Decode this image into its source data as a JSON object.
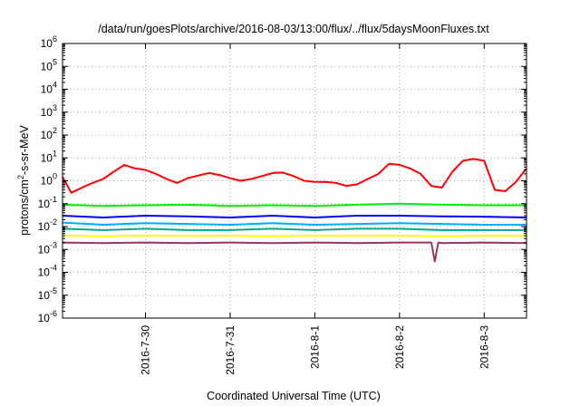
{
  "chart_data": {
    "type": "line",
    "title": "/data/run/goesPlots/archive/2016-08-03/13:00/flux/../flux/5daysMoonFluxes.txt",
    "xlabel": "Coordinated Universal Time (UTC)",
    "ylabel": {
      "prefix": "protons/cm",
      "superscript": "2",
      "suffix": "-s-sr-MeV"
    },
    "yscale": "log",
    "ylim": [
      1e-06,
      1000000.0
    ],
    "y_ticks": [
      {
        "base": "10",
        "exp": "-6",
        "value": 1e-06
      },
      {
        "base": "10",
        "exp": "-5",
        "value": 1e-05
      },
      {
        "base": "10",
        "exp": "-4",
        "value": 0.0001
      },
      {
        "base": "10",
        "exp": "-3",
        "value": 0.001
      },
      {
        "base": "10",
        "exp": "-2",
        "value": 0.01
      },
      {
        "base": "10",
        "exp": "-1",
        "value": 0.1
      },
      {
        "base": "10",
        "exp": "0",
        "value": 1
      },
      {
        "base": "10",
        "exp": "1",
        "value": 10
      },
      {
        "base": "10",
        "exp": "2",
        "value": 100
      },
      {
        "base": "10",
        "exp": "3",
        "value": 1000
      },
      {
        "base": "10",
        "exp": "4",
        "value": 10000
      },
      {
        "base": "10",
        "exp": "5",
        "value": 100000
      },
      {
        "base": "10",
        "exp": "6",
        "value": 1000000
      }
    ],
    "x_range": [
      "2016-07-29T00:30",
      "2016-08-03T12:00"
    ],
    "x_ticks": [
      {
        "label": "2016-7-30",
        "value": "2016-07-30T00:00"
      },
      {
        "label": "2016-7-31",
        "value": "2016-07-31T00:00"
      },
      {
        "label": "2016-8-1",
        "value": "2016-08-01T00:00"
      },
      {
        "label": "2016-8-2",
        "value": "2016-08-02T00:00"
      },
      {
        "label": "2016-8-3",
        "value": "2016-08-03T00:00"
      }
    ],
    "grid": true,
    "series": [
      {
        "color": "#ff0000",
        "x": [
          "2016-07-29T00:30",
          "2016-07-29T03:00",
          "2016-07-29T06:00",
          "2016-07-29T09:00",
          "2016-07-29T12:00",
          "2016-07-29T15:00",
          "2016-07-29T18:00",
          "2016-07-29T21:00",
          "2016-07-30T00:00",
          "2016-07-30T03:00",
          "2016-07-30T06:00",
          "2016-07-30T09:00",
          "2016-07-30T12:00",
          "2016-07-30T15:00",
          "2016-07-30T18:00",
          "2016-07-30T21:00",
          "2016-07-31T00:00",
          "2016-07-31T03:00",
          "2016-07-31T06:00",
          "2016-07-31T09:00",
          "2016-07-31T12:00",
          "2016-07-31T15:00",
          "2016-07-31T18:00",
          "2016-07-31T21:00",
          "2016-08-01T00:00",
          "2016-08-01T03:00",
          "2016-08-01T06:00",
          "2016-08-01T09:00",
          "2016-08-01T12:00",
          "2016-08-01T15:00",
          "2016-08-01T18:00",
          "2016-08-01T21:00",
          "2016-08-02T00:00",
          "2016-08-02T03:00",
          "2016-08-02T06:00",
          "2016-08-02T09:00",
          "2016-08-02T12:00",
          "2016-08-02T15:00",
          "2016-08-02T18:00",
          "2016-08-02T21:00",
          "2016-08-03T00:00",
          "2016-08-03T03:00",
          "2016-08-03T06:00",
          "2016-08-03T09:00",
          "2016-08-03T12:00"
        ],
        "y": [
          1.5,
          0.3,
          0.5,
          0.8,
          1.2,
          2.5,
          5,
          3.5,
          3,
          2,
          1.2,
          0.8,
          1.3,
          1.7,
          2.2,
          1.8,
          1.3,
          1.0,
          1.2,
          1.6,
          2.2,
          2.3,
          1.6,
          1.0,
          0.9,
          0.9,
          0.8,
          0.6,
          0.7,
          1.2,
          2.0,
          5.5,
          5.0,
          3.5,
          2.0,
          0.6,
          0.5,
          2.5,
          7.5,
          9.0,
          7.5,
          0.4,
          0.35,
          0.9,
          3.5
        ]
      },
      {
        "color": "#00ee00",
        "x": [
          "2016-07-29T00:30",
          "2016-07-29T12:00",
          "2016-07-30T00:00",
          "2016-07-30T12:00",
          "2016-07-31T00:00",
          "2016-07-31T12:00",
          "2016-08-01T00:00",
          "2016-08-01T12:00",
          "2016-08-02T00:00",
          "2016-08-02T12:00",
          "2016-08-03T00:00",
          "2016-08-03T12:00"
        ],
        "y": [
          0.09,
          0.08,
          0.085,
          0.09,
          0.08,
          0.085,
          0.08,
          0.09,
          0.1,
          0.09,
          0.085,
          0.085
        ]
      },
      {
        "color": "#0000ff",
        "x": [
          "2016-07-29T00:30",
          "2016-07-29T12:00",
          "2016-07-30T00:00",
          "2016-07-30T12:00",
          "2016-07-31T00:00",
          "2016-07-31T12:00",
          "2016-08-01T00:00",
          "2016-08-01T12:00",
          "2016-08-02T00:00",
          "2016-08-02T12:00",
          "2016-08-03T00:00",
          "2016-08-03T12:00"
        ],
        "y": [
          0.03,
          0.025,
          0.03,
          0.028,
          0.025,
          0.03,
          0.025,
          0.03,
          0.03,
          0.028,
          0.027,
          0.025
        ]
      },
      {
        "color": "#00aaff",
        "x": [
          "2016-07-29T00:30",
          "2016-07-29T12:00",
          "2016-07-30T00:00",
          "2016-07-30T12:00",
          "2016-07-31T00:00",
          "2016-07-31T12:00",
          "2016-08-01T00:00",
          "2016-08-01T12:00",
          "2016-08-02T00:00",
          "2016-08-02T12:00",
          "2016-08-03T00:00",
          "2016-08-03T12:00"
        ],
        "y": [
          0.015,
          0.012,
          0.014,
          0.013,
          0.012,
          0.014,
          0.012,
          0.013,
          0.014,
          0.013,
          0.012,
          0.012
        ]
      },
      {
        "color": "#00aa88",
        "x": [
          "2016-07-29T00:30",
          "2016-07-29T12:00",
          "2016-07-30T00:00",
          "2016-07-30T12:00",
          "2016-07-31T00:00",
          "2016-07-31T12:00",
          "2016-08-01T00:00",
          "2016-08-01T12:00",
          "2016-08-02T00:00",
          "2016-08-02T12:00",
          "2016-08-03T00:00",
          "2016-08-03T12:00"
        ],
        "y": [
          0.008,
          0.007,
          0.008,
          0.007,
          0.007,
          0.008,
          0.007,
          0.008,
          0.008,
          0.007,
          0.007,
          0.007
        ]
      },
      {
        "color": "#ffff00",
        "x": [
          "2016-07-29T00:30",
          "2016-07-29T12:00",
          "2016-07-30T00:00",
          "2016-07-30T12:00",
          "2016-07-31T00:00",
          "2016-07-31T12:00",
          "2016-08-01T00:00",
          "2016-08-01T12:00",
          "2016-08-02T00:00",
          "2016-08-02T12:00",
          "2016-08-03T00:00",
          "2016-08-03T12:00"
        ],
        "y": [
          0.004,
          0.0038,
          0.004,
          0.0039,
          0.004,
          0.0038,
          0.004,
          0.0039,
          0.004,
          0.0038,
          0.004,
          0.0039
        ]
      },
      {
        "color": "#993366",
        "x": [
          "2016-07-29T00:30",
          "2016-07-29T12:00",
          "2016-07-30T00:00",
          "2016-07-30T12:00",
          "2016-07-31T00:00",
          "2016-07-31T12:00",
          "2016-08-01T00:00",
          "2016-08-01T12:00",
          "2016-08-02T00:00",
          "2016-08-02T09:00",
          "2016-08-02T10:00",
          "2016-08-02T11:00",
          "2016-08-02T12:00",
          "2016-08-03T00:00",
          "2016-08-03T12:00"
        ],
        "y": [
          0.002,
          0.0019,
          0.002,
          0.0019,
          0.002,
          0.0019,
          0.002,
          0.0019,
          0.002,
          0.002,
          0.0003,
          0.002,
          0.0019,
          0.002,
          0.0019
        ]
      }
    ]
  }
}
